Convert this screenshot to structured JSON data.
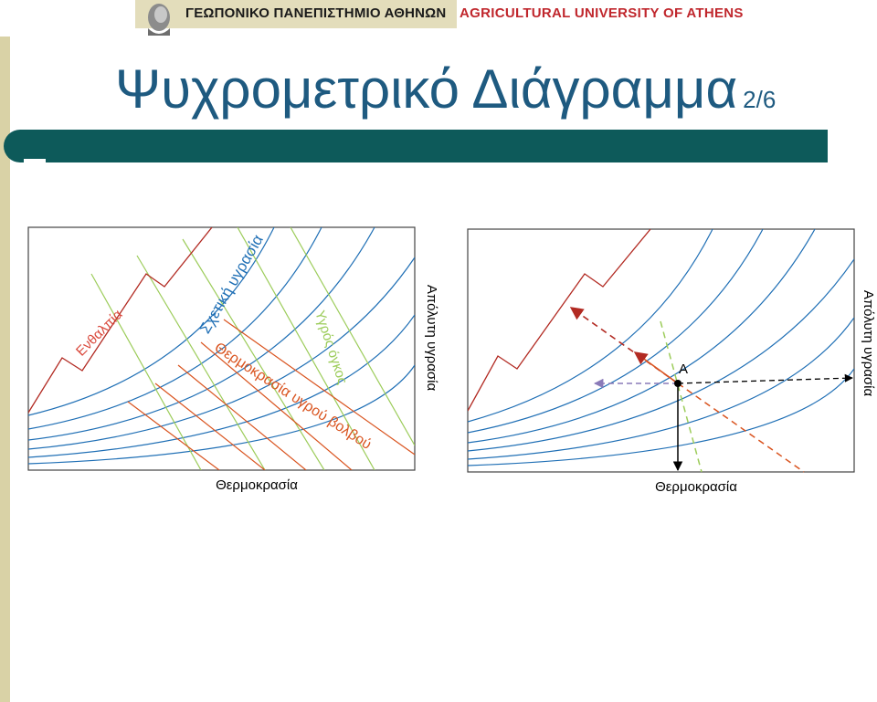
{
  "header": {
    "university_greek": "ΓΕΩΠΟΝΙΚΟ ΠΑΝΕΠΙΣΤΗΜΙΟ ΑΘΗΝΩΝ",
    "university_english": "AGRICULTURAL UNIVERSITY OF ATHENS"
  },
  "slide": {
    "title": "Ψυχρομετρικό Διάγραμμα",
    "number": "2/6"
  },
  "left_diagram": {
    "enthalpy_label": "Ενθαλπία",
    "relative_humidity_label": "Σχετική υγρασία",
    "specific_volume_label": "Υγρός όγκος",
    "wet_bulb_label": "Θερμοκρασία υγρού βολβού",
    "x_axis_label": "Θερμοκρασία",
    "y_axis_label": "Απόλυτη υγρασία"
  },
  "right_diagram": {
    "point_label": "Α",
    "x_axis_label": "Θερμοκρασία",
    "y_axis_label": "Απόλυτη υγρασία"
  },
  "colors": {
    "title": "#1e5a80",
    "bar": "#0d5a5a",
    "rh_curves": "#1f6fb5",
    "enthalpy": "#b22a22",
    "wet_bulb": "#d9531e",
    "specific_volume": "#9ccc5a",
    "university_english": "#c0272d"
  }
}
